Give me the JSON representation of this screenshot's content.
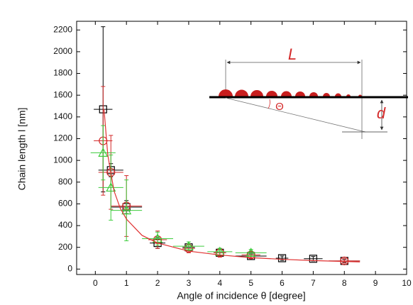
{
  "chart_data": {
    "type": "scatter",
    "x_label": "Angle of incidence θ [degree]",
    "y_label": "Chain length l [nm]",
    "xlim": [
      -0.6,
      10
    ],
    "ylim": [
      -50,
      2280
    ],
    "xticks": [
      0,
      1,
      2,
      3,
      4,
      5,
      6,
      7,
      8,
      9,
      10
    ],
    "yticks": [
      0,
      200,
      400,
      600,
      800,
      1000,
      1200,
      1400,
      1600,
      1800,
      2000,
      2200
    ],
    "grid": false,
    "series": [
      {
        "color": "#000000",
        "marker": "square",
        "x": [
          0.25,
          0.5,
          1,
          2,
          3,
          4,
          5,
          6,
          7,
          8
        ],
        "values": [
          1470,
          910,
          570,
          240,
          200,
          150,
          120,
          100,
          95,
          75
        ],
        "xerr": [
          0.3,
          0.4,
          0.5,
          0.25,
          0.2,
          0.2,
          0.5,
          0.2,
          0.3,
          0.5
        ],
        "yerr": [
          760,
          60,
          60,
          50,
          30,
          30,
          20,
          20,
          20,
          15
        ]
      },
      {
        "color": "#d42a2a",
        "marker": "circle",
        "x": [
          0.25,
          0.5,
          1,
          2,
          3,
          4,
          5,
          8
        ],
        "values": [
          1180,
          890,
          580,
          270,
          190,
          150,
          130,
          75
        ],
        "xerr": [
          0.3,
          0.4,
          0.5,
          0.3,
          0.2,
          0.2,
          0.3,
          0.5
        ],
        "yerr": [
          500,
          340,
          280,
          80,
          40,
          40,
          30,
          20
        ]
      },
      {
        "color": "#3ccc3c",
        "marker": "triangle",
        "x": [
          0.25,
          0.5,
          1,
          2,
          3,
          4,
          5
        ],
        "values": [
          1070,
          750,
          540,
          280,
          210,
          160,
          150
        ],
        "xerr": [
          0.4,
          0.4,
          0.5,
          0.5,
          0.5,
          0.4,
          0.5
        ],
        "yerr": [
          250,
          300,
          280,
          60,
          40,
          30,
          30
        ]
      },
      {
        "color": "#e03030",
        "marker": "line",
        "x": [
          0.28,
          0.4,
          0.6,
          0.8,
          1,
          1.5,
          2,
          3,
          4,
          5,
          6,
          7,
          8,
          8.5
        ],
        "values": [
          1470,
          1050,
          720,
          560,
          460,
          310,
          240,
          165,
          130,
          105,
          90,
          78,
          70,
          66
        ]
      }
    ],
    "inset_labels": [
      "L",
      "d",
      "Θ"
    ]
  }
}
